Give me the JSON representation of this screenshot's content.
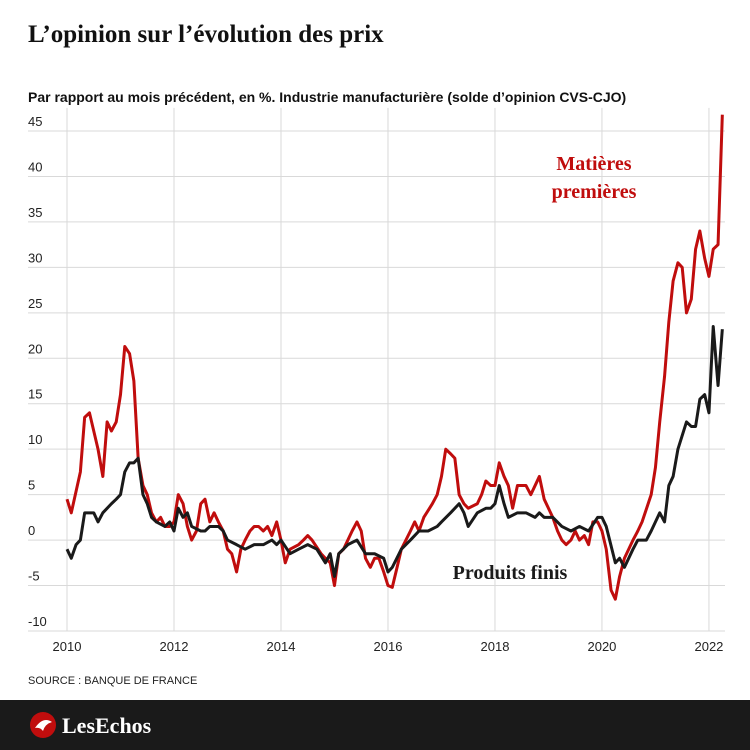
{
  "chart_data": {
    "type": "line",
    "title": "L’opinion sur l’évolution des prix",
    "subtitle": "Par rapport au mois précédent, en %. Industrie manufacturière (solde d’opinion CVS-CJO)",
    "source": "SOURCE : BANQUE DE FRANCE",
    "brand": "LesEchos",
    "xlim": [
      2010,
      2022.3
    ],
    "xticks": [
      2010,
      2012,
      2014,
      2016,
      2018,
      2020,
      2022
    ],
    "ylim": [
      -10,
      47
    ],
    "yticks": [
      -10,
      -5,
      0,
      5,
      10,
      15,
      20,
      25,
      30,
      35,
      40,
      45
    ],
    "grid": true,
    "series": [
      {
        "name": [
          "Matières",
          "premières"
        ],
        "color": "#c00d0d",
        "x": [
          2010.0,
          2010.08,
          2010.25,
          2010.33,
          2010.42,
          2010.58,
          2010.67,
          2010.75,
          2010.83,
          2010.92,
          2011.0,
          2011.08,
          2011.17,
          2011.25,
          2011.33,
          2011.42,
          2011.5,
          2011.58,
          2011.67,
          2011.75,
          2011.83,
          2011.92,
          2012.0,
          2012.08,
          2012.17,
          2012.25,
          2012.33,
          2012.42,
          2012.5,
          2012.58,
          2012.67,
          2012.75,
          2012.83,
          2012.92,
          2013.0,
          2013.08,
          2013.17,
          2013.25,
          2013.33,
          2013.42,
          2013.5,
          2013.58,
          2013.67,
          2013.75,
          2013.83,
          2013.92,
          2014.0,
          2014.08,
          2014.17,
          2014.33,
          2014.42,
          2014.5,
          2014.58,
          2014.75,
          2014.83,
          2014.92,
          2015.0,
          2015.08,
          2015.17,
          2015.33,
          2015.42,
          2015.5,
          2015.58,
          2015.67,
          2015.75,
          2015.83,
          2015.92,
          2016.0,
          2016.08,
          2016.17,
          2016.25,
          2016.42,
          2016.5,
          2016.58,
          2016.67,
          2016.83,
          2016.92,
          2017.0,
          2017.08,
          2017.17,
          2017.25,
          2017.33,
          2017.42,
          2017.5,
          2017.67,
          2017.75,
          2017.83,
          2017.92,
          2018.0,
          2018.08,
          2018.17,
          2018.25,
          2018.33,
          2018.42,
          2018.58,
          2018.67,
          2018.75,
          2018.83,
          2018.92,
          2019.0,
          2019.08,
          2019.17,
          2019.25,
          2019.33,
          2019.42,
          2019.5,
          2019.58,
          2019.67,
          2019.75,
          2019.83,
          2019.92,
          2020.0,
          2020.08,
          2020.17,
          2020.25,
          2020.33,
          2020.42,
          2020.58,
          2020.67,
          2020.75,
          2020.92,
          2021.0,
          2021.08,
          2021.17,
          2021.25,
          2021.33,
          2021.42,
          2021.5,
          2021.58,
          2021.67,
          2021.75,
          2021.83,
          2021.92,
          2022.0,
          2022.08,
          2022.17,
          2022.25
        ],
        "values": [
          4.5,
          3,
          7.5,
          13.5,
          14,
          10,
          7,
          13,
          12,
          13,
          16,
          21.3,
          20.5,
          17.5,
          9,
          6,
          5,
          3,
          2,
          2.5,
          1.5,
          1.5,
          2,
          5,
          4,
          1.5,
          0,
          1,
          4,
          4.5,
          2,
          3,
          2,
          1,
          -1,
          -1.5,
          -3.5,
          -1,
          0,
          1,
          1.5,
          1.5,
          1,
          1.5,
          0.5,
          2,
          0,
          -2.5,
          -1,
          -0.5,
          0,
          0.5,
          0,
          -1.5,
          -2,
          -2.5,
          -5,
          -1.5,
          -1,
          1,
          2,
          1,
          -2,
          -3,
          -2,
          -2,
          -3.5,
          -5,
          -5.2,
          -3,
          -1,
          1,
          2,
          1,
          2.5,
          4,
          5,
          7,
          10,
          9.5,
          9,
          5,
          4,
          3.5,
          4,
          5,
          6.5,
          6,
          6,
          8.5,
          7,
          6,
          3.5,
          6,
          6,
          5,
          6,
          7,
          4.5,
          3.5,
          2.5,
          1,
          0,
          -0.5,
          0,
          1,
          0,
          0.5,
          -0.5,
          2,
          2,
          1,
          -1,
          -5.5,
          -6.5,
          -4,
          -2,
          0,
          1,
          2,
          5,
          8,
          13,
          18,
          24,
          28.5,
          30.5,
          30,
          25,
          26.5,
          32,
          34,
          31,
          29,
          32,
          32.5,
          46.8
        ]
      },
      {
        "name": [
          "Produits finis"
        ],
        "color": "#1a1a1a",
        "x": [
          2010.0,
          2010.08,
          2010.17,
          2010.25,
          2010.33,
          2010.5,
          2010.58,
          2010.67,
          2010.83,
          2010.92,
          2011.0,
          2011.08,
          2011.17,
          2011.25,
          2011.33,
          2011.42,
          2011.5,
          2011.58,
          2011.67,
          2011.83,
          2011.92,
          2012.0,
          2012.08,
          2012.17,
          2012.25,
          2012.33,
          2012.5,
          2012.58,
          2012.67,
          2012.83,
          2012.92,
          2013.0,
          2013.17,
          2013.33,
          2013.5,
          2013.67,
          2013.83,
          2013.92,
          2014.0,
          2014.17,
          2014.33,
          2014.5,
          2014.67,
          2014.83,
          2014.92,
          2015.0,
          2015.08,
          2015.25,
          2015.42,
          2015.58,
          2015.75,
          2015.92,
          2016.0,
          2016.08,
          2016.25,
          2016.42,
          2016.58,
          2016.75,
          2016.92,
          2017.0,
          2017.17,
          2017.33,
          2017.42,
          2017.5,
          2017.67,
          2017.83,
          2017.92,
          2018.0,
          2018.08,
          2018.17,
          2018.25,
          2018.42,
          2018.58,
          2018.75,
          2018.83,
          2018.92,
          2019.08,
          2019.25,
          2019.42,
          2019.58,
          2019.75,
          2019.92,
          2020.0,
          2020.08,
          2020.25,
          2020.33,
          2020.42,
          2020.58,
          2020.67,
          2020.83,
          2020.92,
          2021.0,
          2021.08,
          2021.17,
          2021.25,
          2021.33,
          2021.42,
          2021.58,
          2021.67,
          2021.75,
          2021.83,
          2021.92,
          2022.0,
          2022.08,
          2022.17,
          2022.25
        ],
        "values": [
          -1,
          -2,
          -0.5,
          0,
          3,
          3,
          2,
          3,
          4,
          4.5,
          5,
          7.5,
          8.5,
          8.5,
          9,
          5,
          4,
          2.5,
          2,
          1.5,
          2,
          1,
          3.5,
          2.5,
          3,
          1.5,
          1,
          1,
          1.5,
          1.5,
          1,
          0,
          -0.5,
          -1,
          -0.5,
          -0.5,
          0,
          -0.5,
          0,
          -1.5,
          -1,
          -0.5,
          -1,
          -2.5,
          -1.5,
          -4,
          -1.5,
          -0.5,
          0,
          -1.5,
          -1.5,
          -2,
          -3.5,
          -3,
          -1,
          0,
          1,
          1,
          1.5,
          2,
          3,
          4,
          3,
          1.5,
          3,
          3.5,
          3.5,
          4,
          6,
          4,
          2.5,
          3,
          3,
          2.5,
          3,
          2.5,
          2.5,
          1.5,
          1,
          1.5,
          1,
          2.5,
          2.5,
          1.5,
          -2.5,
          -2,
          -3,
          -1,
          0,
          0,
          1,
          2,
          3,
          2,
          6,
          7,
          10,
          13,
          12.5,
          12.5,
          15.5,
          16,
          14,
          23.5,
          17,
          23.2
        ]
      }
    ]
  }
}
